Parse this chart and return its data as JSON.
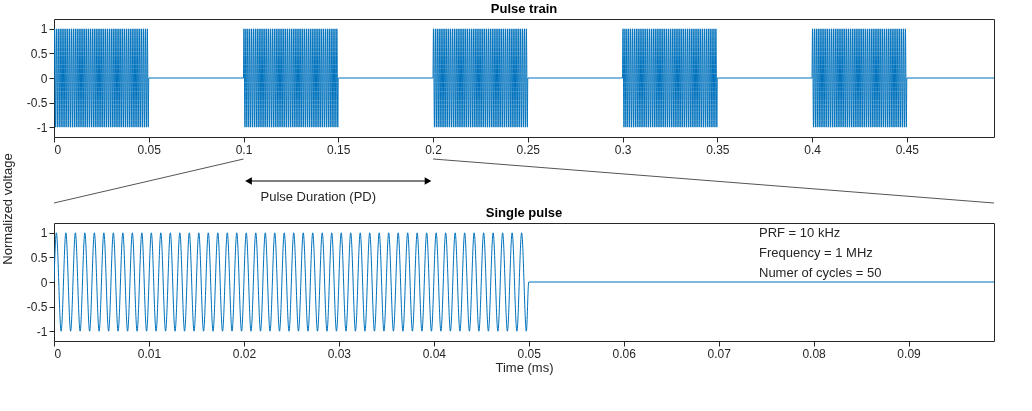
{
  "chart_data": [
    {
      "type": "line",
      "title": "Pulse train",
      "ylabel": "Normalized voltage",
      "annotations": [
        "Pulse Duration (PD)"
      ],
      "xlim": [
        0,
        0.496
      ],
      "xticks": [
        0,
        0.05,
        0.1,
        0.15,
        0.2,
        0.25,
        0.3,
        0.35,
        0.4,
        0.45
      ],
      "ylim": [
        -1.2,
        1.2
      ],
      "yticks": [
        -1,
        -0.5,
        0,
        0.5,
        1
      ],
      "series": [
        {
          "color": "#0072bd",
          "x": [
            0,
            0.00025,
            0.00075,
            0.00125,
            0.00175,
            0.00225,
            0.00275,
            0.00325,
            0.00375,
            0.00425,
            0.00475,
            0.00525,
            0.00575,
            0.00625,
            0.00675,
            0.00725,
            0.00775,
            0.00825,
            0.00875,
            0.00925,
            0.00975,
            0.01025,
            0.01075,
            0.01125,
            0.01175,
            0.01225,
            0.01275,
            0.01325,
            0.01375,
            0.01425,
            0.01475,
            0.01525,
            0.01575,
            0.01625,
            0.01675,
            0.01725,
            0.01775,
            0.01825,
            0.01875,
            0.01925,
            0.01975,
            0.02025,
            0.02075,
            0.02125,
            0.02175,
            0.02225,
            0.02275,
            0.02325,
            0.02375,
            0.02425,
            0.02475,
            0.02525,
            0.02575,
            0.02625,
            0.02675,
            0.02725,
            0.02775,
            0.02825,
            0.02875,
            0.02925,
            0.02975,
            0.03025,
            0.03075,
            0.03125,
            0.03175,
            0.03225,
            0.03275,
            0.03325,
            0.03375,
            0.03425,
            0.03475,
            0.03525,
            0.03575,
            0.03625,
            0.03675,
            0.03725,
            0.03775,
            0.03825,
            0.03875,
            0.03925,
            0.03975,
            0.04025,
            0.04075,
            0.04125,
            0.04175,
            0.04225,
            0.04275,
            0.04325,
            0.04375,
            0.04425,
            0.04475,
            0.04525,
            0.04575,
            0.04625,
            0.04675,
            0.04725,
            0.04775,
            0.04825,
            0.04875,
            0.04925,
            0.04975,
            0.05,
            0.1
          ],
          "values": [
            0,
            1,
            -1,
            1,
            -1,
            1,
            -1,
            1,
            -1,
            1,
            -1,
            1,
            -1,
            1,
            -1,
            1,
            -1,
            1,
            -1,
            1,
            -1,
            1,
            -1,
            1,
            -1,
            1,
            -1,
            1,
            -1,
            1,
            -1,
            1,
            -1,
            1,
            -1,
            1,
            -1,
            1,
            -1,
            1,
            -1,
            1,
            -1,
            1,
            -1,
            1,
            -1,
            1,
            -1,
            1,
            -1,
            1,
            -1,
            1,
            -1,
            1,
            -1,
            1,
            -1,
            1,
            -1,
            1,
            -1,
            1,
            -1,
            1,
            -1,
            1,
            -1,
            1,
            -1,
            1,
            -1,
            1,
            -1,
            1,
            -1,
            1,
            -1,
            1,
            -1,
            1,
            -1,
            1,
            -1,
            1,
            -1,
            1,
            -1,
            1,
            -1,
            1,
            -1,
            1,
            -1,
            1,
            -1,
            1,
            -1,
            1,
            -1,
            0,
            0
          ]
        },
        {
          "color": "#0072bd",
          "x": [
            0.1,
            0.10025,
            0.10075,
            0.10125,
            0.10175,
            0.10225,
            0.10275,
            0.10325,
            0.10375,
            0.10425,
            0.10475,
            0.10525,
            0.10575,
            0.10625,
            0.10675,
            0.10725,
            0.10775,
            0.10825,
            0.10875,
            0.10925,
            0.10975,
            0.11025,
            0.11075,
            0.11125,
            0.11175,
            0.11225,
            0.11275,
            0.11325,
            0.11375,
            0.11425,
            0.11475,
            0.11525,
            0.11575,
            0.11625,
            0.11675,
            0.11725,
            0.11775,
            0.11825,
            0.11875,
            0.11925,
            0.11975,
            0.12025,
            0.12075,
            0.12125,
            0.12175,
            0.12225,
            0.12275,
            0.12325,
            0.12375,
            0.12425,
            0.12475,
            0.12525,
            0.12575,
            0.12625,
            0.12675,
            0.12725,
            0.12775,
            0.12825,
            0.12875,
            0.12925,
            0.12975,
            0.13025,
            0.13075,
            0.13125,
            0.13175,
            0.13225,
            0.13275,
            0.13325,
            0.13375,
            0.13425,
            0.13475,
            0.13525,
            0.13575,
            0.13625,
            0.13675,
            0.13725,
            0.13775,
            0.13825,
            0.13875,
            0.13925,
            0.13975,
            0.14025,
            0.14075,
            0.14125,
            0.14175,
            0.14225,
            0.14275,
            0.14325,
            0.14375,
            0.14425,
            0.14475,
            0.14525,
            0.14575,
            0.14625,
            0.14675,
            0.14725,
            0.14775,
            0.14825,
            0.14875,
            0.14925,
            0.14975,
            0.15,
            0.2
          ],
          "values": [
            0,
            1,
            -1,
            1,
            -1,
            1,
            -1,
            1,
            -1,
            1,
            -1,
            1,
            -1,
            1,
            -1,
            1,
            -1,
            1,
            -1,
            1,
            -1,
            1,
            -1,
            1,
            -1,
            1,
            -1,
            1,
            -1,
            1,
            -1,
            1,
            -1,
            1,
            -1,
            1,
            -1,
            1,
            -1,
            1,
            -1,
            1,
            -1,
            1,
            -1,
            1,
            -1,
            1,
            -1,
            1,
            -1,
            1,
            -1,
            1,
            -1,
            1,
            -1,
            1,
            -1,
            1,
            -1,
            1,
            -1,
            1,
            -1,
            1,
            -1,
            1,
            -1,
            1,
            -1,
            1,
            -1,
            1,
            -1,
            1,
            -1,
            1,
            -1,
            1,
            -1,
            1,
            -1,
            1,
            -1,
            1,
            -1,
            1,
            -1,
            1,
            -1,
            1,
            -1,
            1,
            -1,
            1,
            -1,
            1,
            -1,
            1,
            -1,
            0,
            0
          ]
        },
        {
          "color": "#0072bd",
          "x": [
            0.2,
            0.20025,
            0.20075,
            0.20125,
            0.20175,
            0.20225,
            0.20275,
            0.20325,
            0.20375,
            0.20425,
            0.20475,
            0.20525,
            0.20575,
            0.20625,
            0.20675,
            0.20725,
            0.20775,
            0.20825,
            0.20875,
            0.20925,
            0.20975,
            0.21025,
            0.21075,
            0.21125,
            0.21175,
            0.21225,
            0.21275,
            0.21325,
            0.21375,
            0.21425,
            0.21475,
            0.21525,
            0.21575,
            0.21625,
            0.21675,
            0.21725,
            0.21775,
            0.21825,
            0.21875,
            0.21925,
            0.21975,
            0.22025,
            0.22075,
            0.22125,
            0.22175,
            0.22225,
            0.22275,
            0.22325,
            0.22375,
            0.22425,
            0.22475,
            0.22525,
            0.22575,
            0.22625,
            0.22675,
            0.22725,
            0.22775,
            0.22825,
            0.22875,
            0.22925,
            0.22975,
            0.23025,
            0.23075,
            0.23125,
            0.23175,
            0.23225,
            0.23275,
            0.23325,
            0.23375,
            0.23425,
            0.23475,
            0.23525,
            0.23575,
            0.23625,
            0.23675,
            0.23725,
            0.23775,
            0.23825,
            0.23875,
            0.23925,
            0.23975,
            0.24025,
            0.24075,
            0.24125,
            0.24175,
            0.24225,
            0.24275,
            0.24325,
            0.24375,
            0.24425,
            0.24475,
            0.24525,
            0.24575,
            0.24625,
            0.24675,
            0.24725,
            0.24775,
            0.24825,
            0.24875,
            0.24925,
            0.24975,
            0.25,
            0.3
          ],
          "values": [
            0,
            1,
            -1,
            1,
            -1,
            1,
            -1,
            1,
            -1,
            1,
            -1,
            1,
            -1,
            1,
            -1,
            1,
            -1,
            1,
            -1,
            1,
            -1,
            1,
            -1,
            1,
            -1,
            1,
            -1,
            1,
            -1,
            1,
            -1,
            1,
            -1,
            1,
            -1,
            1,
            -1,
            1,
            -1,
            1,
            -1,
            1,
            -1,
            1,
            -1,
            1,
            -1,
            1,
            -1,
            1,
            -1,
            1,
            -1,
            1,
            -1,
            1,
            -1,
            1,
            -1,
            1,
            -1,
            1,
            -1,
            1,
            -1,
            1,
            -1,
            1,
            -1,
            1,
            -1,
            1,
            -1,
            1,
            -1,
            1,
            -1,
            1,
            -1,
            1,
            -1,
            1,
            -1,
            1,
            -1,
            1,
            -1,
            1,
            -1,
            1,
            -1,
            1,
            -1,
            1,
            -1,
            1,
            -1,
            1,
            -1,
            1,
            -1,
            0,
            0
          ]
        },
        {
          "color": "#0072bd",
          "x": [
            0.3,
            0.30025,
            0.30075,
            0.30125,
            0.30175,
            0.30225,
            0.30275,
            0.30325,
            0.30375,
            0.30425,
            0.30475,
            0.30525,
            0.30575,
            0.30625,
            0.30675,
            0.30725,
            0.30775,
            0.30825,
            0.30875,
            0.30925,
            0.30975,
            0.31025,
            0.31075,
            0.31125,
            0.31175,
            0.31225,
            0.31275,
            0.31325,
            0.31375,
            0.31425,
            0.31475,
            0.31525,
            0.31575,
            0.31625,
            0.31675,
            0.31725,
            0.31775,
            0.31825,
            0.31875,
            0.31925,
            0.31975,
            0.32025,
            0.32075,
            0.32125,
            0.32175,
            0.32225,
            0.32275,
            0.32325,
            0.32375,
            0.32425,
            0.32475,
            0.32525,
            0.32575,
            0.32625,
            0.32675,
            0.32725,
            0.32775,
            0.32825,
            0.32875,
            0.32925,
            0.32975,
            0.33025,
            0.33075,
            0.33125,
            0.33175,
            0.33225,
            0.33275,
            0.33325,
            0.33375,
            0.33425,
            0.33475,
            0.33525,
            0.33575,
            0.33625,
            0.33675,
            0.33725,
            0.33775,
            0.33825,
            0.33875,
            0.33925,
            0.33975,
            0.34025,
            0.34075,
            0.34125,
            0.34175,
            0.34225,
            0.34275,
            0.34325,
            0.34375,
            0.34425,
            0.34475,
            0.34525,
            0.34575,
            0.34625,
            0.34675,
            0.34725,
            0.34775,
            0.34825,
            0.34875,
            0.34925,
            0.34975,
            0.35,
            0.4
          ],
          "values": [
            0,
            1,
            -1,
            1,
            -1,
            1,
            -1,
            1,
            -1,
            1,
            -1,
            1,
            -1,
            1,
            -1,
            1,
            -1,
            1,
            -1,
            1,
            -1,
            1,
            -1,
            1,
            -1,
            1,
            -1,
            1,
            -1,
            1,
            -1,
            1,
            -1,
            1,
            -1,
            1,
            -1,
            1,
            -1,
            1,
            -1,
            1,
            -1,
            1,
            -1,
            1,
            -1,
            1,
            -1,
            1,
            -1,
            1,
            -1,
            1,
            -1,
            1,
            -1,
            1,
            -1,
            1,
            -1,
            1,
            -1,
            1,
            -1,
            1,
            -1,
            1,
            -1,
            1,
            -1,
            1,
            -1,
            1,
            -1,
            1,
            -1,
            1,
            -1,
            1,
            -1,
            1,
            -1,
            1,
            -1,
            1,
            -1,
            1,
            -1,
            1,
            -1,
            1,
            -1,
            1,
            -1,
            1,
            -1,
            1,
            -1,
            1,
            -1,
            0,
            0
          ]
        },
        {
          "color": "#0072bd",
          "x": [
            0.4,
            0.40025,
            0.40075,
            0.40125,
            0.40175,
            0.40225,
            0.40275,
            0.40325,
            0.40375,
            0.40425,
            0.40475,
            0.40525,
            0.40575,
            0.40625,
            0.40675,
            0.40725,
            0.40775,
            0.40825,
            0.40875,
            0.40925,
            0.40975,
            0.41025,
            0.41075,
            0.41125,
            0.41175,
            0.41225,
            0.41275,
            0.41325,
            0.41375,
            0.41425,
            0.41475,
            0.41525,
            0.41575,
            0.41625,
            0.41675,
            0.41725,
            0.41775,
            0.41825,
            0.41875,
            0.41925,
            0.41975,
            0.42025,
            0.42075,
            0.42125,
            0.42175,
            0.42225,
            0.42275,
            0.42325,
            0.42375,
            0.42425,
            0.42475,
            0.42525,
            0.42575,
            0.42625,
            0.42675,
            0.42725,
            0.42775,
            0.42825,
            0.42875,
            0.42925,
            0.42975,
            0.43025,
            0.43075,
            0.43125,
            0.43175,
            0.43225,
            0.43275,
            0.43325,
            0.43375,
            0.43425,
            0.43475,
            0.43525,
            0.43575,
            0.43625,
            0.43675,
            0.43725,
            0.43775,
            0.43825,
            0.43875,
            0.43925,
            0.43975,
            0.44025,
            0.44075,
            0.44125,
            0.44175,
            0.44225,
            0.44275,
            0.44325,
            0.44375,
            0.44425,
            0.44475,
            0.44525,
            0.44575,
            0.44625,
            0.44675,
            0.44725,
            0.44775,
            0.44825,
            0.44875,
            0.44925,
            0.44975,
            0.45,
            0.496
          ],
          "values": [
            0,
            1,
            -1,
            1,
            -1,
            1,
            -1,
            1,
            -1,
            1,
            -1,
            1,
            -1,
            1,
            -1,
            1,
            -1,
            1,
            -1,
            1,
            -1,
            1,
            -1,
            1,
            -1,
            1,
            -1,
            1,
            -1,
            1,
            -1,
            1,
            -1,
            1,
            -1,
            1,
            -1,
            1,
            -1,
            1,
            -1,
            1,
            -1,
            1,
            -1,
            1,
            -1,
            1,
            -1,
            1,
            -1,
            1,
            -1,
            1,
            -1,
            1,
            -1,
            1,
            -1,
            1,
            -1,
            1,
            -1,
            1,
            -1,
            1,
            -1,
            1,
            -1,
            1,
            -1,
            1,
            -1,
            1,
            -1,
            1,
            -1,
            1,
            -1,
            1,
            -1,
            1,
            -1,
            1,
            -1,
            1,
            -1,
            1,
            -1,
            1,
            -1,
            1,
            -1,
            1,
            -1,
            1,
            -1,
            1,
            -1,
            1,
            -1,
            0,
            0
          ]
        }
      ]
    },
    {
      "type": "line",
      "title": "Single pulse",
      "xlabel": "Time (ms)",
      "annotations": [
        "PRF = 10 kHz",
        "Frequency = 1 MHz",
        "Numer of cycles = 50"
      ],
      "xlim": [
        0,
        0.099
      ],
      "xticks": [
        0,
        0.01,
        0.02,
        0.03,
        0.04,
        0.05,
        0.06,
        0.07,
        0.08,
        0.09
      ],
      "ylim": [
        -1.2,
        1.2
      ],
      "yticks": [
        -1,
        -0.5,
        0,
        0.5,
        1
      ],
      "series": [
        {
          "color": "#0072bd",
          "x": [
            0,
            0.00025,
            0.00075,
            0.00125,
            0.00175,
            0.00225,
            0.00275,
            0.00325,
            0.00375,
            0.00425,
            0.00475,
            0.00525,
            0.00575,
            0.00625,
            0.00675,
            0.00725,
            0.00775,
            0.00825,
            0.00875,
            0.00925,
            0.00975,
            0.01025,
            0.01075,
            0.01125,
            0.01175,
            0.01225,
            0.01275,
            0.01325,
            0.01375,
            0.01425,
            0.01475,
            0.01525,
            0.01575,
            0.01625,
            0.01675,
            0.01725,
            0.01775,
            0.01825,
            0.01875,
            0.01925,
            0.01975,
            0.02025,
            0.02075,
            0.02125,
            0.02175,
            0.02225,
            0.02275,
            0.02325,
            0.02375,
            0.02425,
            0.02475,
            0.02525,
            0.02575,
            0.02625,
            0.02675,
            0.02725,
            0.02775,
            0.02825,
            0.02875,
            0.02925,
            0.02975,
            0.03025,
            0.03075,
            0.03125,
            0.03175,
            0.03225,
            0.03275,
            0.03325,
            0.03375,
            0.03425,
            0.03475,
            0.03525,
            0.03575,
            0.03625,
            0.03675,
            0.03725,
            0.03775,
            0.03825,
            0.03875,
            0.03925,
            0.03975,
            0.04025,
            0.04075,
            0.04125,
            0.04175,
            0.04225,
            0.04275,
            0.04325,
            0.04375,
            0.04425,
            0.04475,
            0.04525,
            0.04575,
            0.04625,
            0.04675,
            0.04725,
            0.04775,
            0.04825,
            0.04875,
            0.04925,
            0.04975,
            0.05,
            0.099
          ],
          "values": [
            0,
            1,
            -1,
            1,
            -1,
            1,
            -1,
            1,
            -1,
            1,
            -1,
            1,
            -1,
            1,
            -1,
            1,
            -1,
            1,
            -1,
            1,
            -1,
            1,
            -1,
            1,
            -1,
            1,
            -1,
            1,
            -1,
            1,
            -1,
            1,
            -1,
            1,
            -1,
            1,
            -1,
            1,
            -1,
            1,
            -1,
            1,
            -1,
            1,
            -1,
            1,
            -1,
            1,
            -1,
            1,
            -1,
            1,
            -1,
            1,
            -1,
            1,
            -1,
            1,
            -1,
            1,
            -1,
            1,
            -1,
            1,
            -1,
            1,
            -1,
            1,
            -1,
            1,
            -1,
            1,
            -1,
            1,
            -1,
            1,
            -1,
            1,
            -1,
            1,
            -1,
            1,
            -1,
            1,
            -1,
            1,
            -1,
            1,
            -1,
            1,
            -1,
            1,
            -1,
            1,
            -1,
            1,
            -1,
            1,
            -1,
            1,
            -1,
            0,
            0
          ]
        }
      ]
    }
  ]
}
